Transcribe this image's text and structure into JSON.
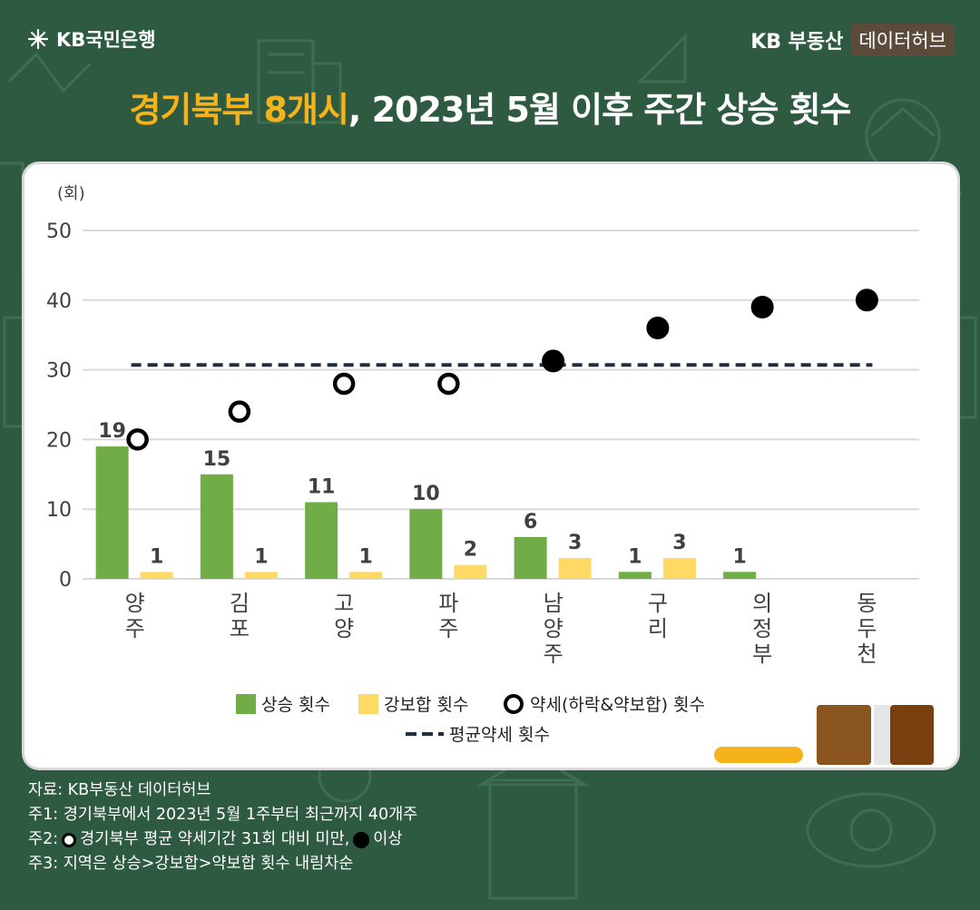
{
  "brand": {
    "bank": "KB국민은행",
    "realestate": "KB 부동산",
    "hub": "데이터허브"
  },
  "title": {
    "highlight": "경기북부 8개시",
    "rest": ", 2023년 5월 이후 주간 상승 횟수"
  },
  "chart_data": {
    "type": "bar",
    "ylabel": "(회)",
    "ylim": [
      0,
      50
    ],
    "yticks": [
      0,
      10,
      20,
      30,
      40,
      50
    ],
    "grid": true,
    "categories": [
      "양\n주",
      "김\n포",
      "고\n양",
      "파\n주",
      "남\n양\n주",
      "구\n리",
      "의\n정\n부",
      "동\n두\n천"
    ],
    "series": [
      {
        "name": "상승 횟수",
        "kind": "bar",
        "color": "#70ad47",
        "values": [
          19,
          15,
          11,
          10,
          6,
          1,
          1,
          null
        ],
        "labels": [
          "19",
          "15",
          "11",
          "10",
          "6",
          "1",
          "1",
          ""
        ]
      },
      {
        "name": "강보합 횟수",
        "kind": "bar",
        "color": "#ffd966",
        "values": [
          1,
          1,
          1,
          2,
          3,
          3,
          null,
          null
        ],
        "labels": [
          "1",
          "1",
          "1",
          "2",
          "3",
          "3",
          "",
          ""
        ]
      },
      {
        "name": "약세(하락&약보합) 횟수",
        "kind": "scatter",
        "values": [
          20,
          24,
          28,
          28,
          31,
          36,
          39,
          40
        ],
        "filled": [
          false,
          false,
          false,
          false,
          true,
          true,
          true,
          true
        ]
      },
      {
        "name": "평균약세 횟수",
        "kind": "line",
        "value": 30.7,
        "style": "dashed",
        "color": "#1f2d3d"
      }
    ],
    "legend": {
      "placement": "bottom"
    }
  },
  "footnotes": {
    "source": "자료: KB부동산 데이터허브",
    "note1": "주1: 경기북부에서 2023년 5월 1주부터 최근까지 40개주",
    "note2_prefix": "주2:",
    "note2_mid": "경기북부 평균 약세기간 31회 대비 미만,",
    "note2_suffix": "이상",
    "note3": "주3: 지역은 상승>강보합>약보합 횟수 내림차순"
  }
}
